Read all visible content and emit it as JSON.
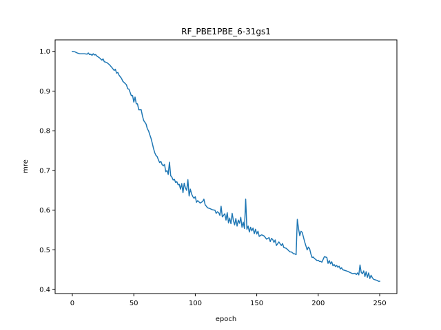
{
  "chart_data": {
    "type": "line",
    "title": "RF_PBE1PBE_6-31gs1",
    "xlabel": "epoch",
    "ylabel": "mre",
    "xlim": [
      -14,
      264
    ],
    "ylim": [
      0.39,
      1.029
    ],
    "xticks": [
      0,
      50,
      100,
      150,
      200,
      250
    ],
    "yticks": [
      0.4,
      0.5,
      0.6,
      0.7,
      0.8,
      0.9,
      1.0
    ],
    "xtick_labels": [
      "0",
      "50",
      "100",
      "150",
      "200",
      "250"
    ],
    "ytick_labels": [
      "0.4",
      "0.5",
      "0.6",
      "0.7",
      "0.8",
      "0.9",
      "1.0"
    ],
    "grid": false,
    "series": [
      {
        "color": "#1f77b4",
        "points": [
          [
            0,
            1.0
          ],
          [
            2,
            0.999
          ],
          [
            4,
            0.996
          ],
          [
            6,
            0.994
          ],
          [
            8,
            0.994
          ],
          [
            10,
            0.994
          ],
          [
            12,
            0.993
          ],
          [
            13,
            0.996
          ],
          [
            14,
            0.992
          ],
          [
            15,
            0.993
          ],
          [
            16,
            0.99
          ],
          [
            17,
            0.994
          ],
          [
            18,
            0.991
          ],
          [
            19,
            0.992
          ],
          [
            20,
            0.988
          ],
          [
            22,
            0.984
          ],
          [
            24,
            0.978
          ],
          [
            25,
            0.981
          ],
          [
            26,
            0.974
          ],
          [
            28,
            0.972
          ],
          [
            30,
            0.967
          ],
          [
            32,
            0.96
          ],
          [
            34,
            0.952
          ],
          [
            35,
            0.955
          ],
          [
            36,
            0.945
          ],
          [
            37,
            0.947
          ],
          [
            38,
            0.94
          ],
          [
            40,
            0.932
          ],
          [
            41,
            0.925
          ],
          [
            42,
            0.922
          ],
          [
            44,
            0.916
          ],
          [
            45,
            0.906
          ],
          [
            46,
            0.905
          ],
          [
            47,
            0.897
          ],
          [
            48,
            0.888
          ],
          [
            49,
            0.889
          ],
          [
            50,
            0.872
          ],
          [
            51,
            0.885
          ],
          [
            52,
            0.868
          ],
          [
            53,
            0.868
          ],
          [
            54,
            0.853
          ],
          [
            56,
            0.853
          ],
          [
            57,
            0.838
          ],
          [
            58,
            0.826
          ],
          [
            60,
            0.817
          ],
          [
            61,
            0.805
          ],
          [
            62,
            0.8
          ],
          [
            63,
            0.79
          ],
          [
            64,
            0.781
          ],
          [
            65,
            0.769
          ],
          [
            66,
            0.756
          ],
          [
            67,
            0.745
          ],
          [
            68,
            0.738
          ],
          [
            69,
            0.735
          ],
          [
            70,
            0.727
          ],
          [
            71,
            0.72
          ],
          [
            72,
            0.723
          ],
          [
            73,
            0.715
          ],
          [
            74,
            0.712
          ],
          [
            75,
            0.715
          ],
          [
            76,
            0.697
          ],
          [
            77,
            0.7
          ],
          [
            78,
            0.69
          ],
          [
            79,
            0.721
          ],
          [
            80,
            0.687
          ],
          [
            81,
            0.683
          ],
          [
            82,
            0.676
          ],
          [
            83,
            0.678
          ],
          [
            84,
            0.67
          ],
          [
            85,
            0.672
          ],
          [
            86,
            0.664
          ],
          [
            87,
            0.665
          ],
          [
            88,
            0.653
          ],
          [
            89,
            0.667
          ],
          [
            90,
            0.644
          ],
          [
            91,
            0.668
          ],
          [
            92,
            0.656
          ],
          [
            93,
            0.65
          ],
          [
            94,
            0.677
          ],
          [
            95,
            0.636
          ],
          [
            96,
            0.653
          ],
          [
            97,
            0.641
          ],
          [
            98,
            0.634
          ],
          [
            99,
            0.63
          ],
          [
            100,
            0.634
          ],
          [
            101,
            0.62
          ],
          [
            102,
            0.624
          ],
          [
            104,
            0.618
          ],
          [
            106,
            0.622
          ],
          [
            107,
            0.628
          ],
          [
            108,
            0.614
          ],
          [
            110,
            0.606
          ],
          [
            112,
            0.604
          ],
          [
            114,
            0.601
          ],
          [
            116,
            0.6
          ],
          [
            117,
            0.592
          ],
          [
            118,
            0.596
          ],
          [
            119,
            0.594
          ],
          [
            120,
            0.587
          ],
          [
            121,
            0.61
          ],
          [
            122,
            0.583
          ],
          [
            124,
            0.591
          ],
          [
            125,
            0.575
          ],
          [
            126,
            0.594
          ],
          [
            127,
            0.568
          ],
          [
            128,
            0.58
          ],
          [
            129,
            0.566
          ],
          [
            130,
            0.592
          ],
          [
            131,
            0.574
          ],
          [
            132,
            0.563
          ],
          [
            133,
            0.579
          ],
          [
            134,
            0.56
          ],
          [
            135,
            0.575
          ],
          [
            136,
            0.567
          ],
          [
            137,
            0.582
          ],
          [
            138,
            0.557
          ],
          [
            139,
            0.57
          ],
          [
            140,
            0.554
          ],
          [
            141,
            0.628
          ],
          [
            142,
            0.552
          ],
          [
            143,
            0.56
          ],
          [
            144,
            0.545
          ],
          [
            145,
            0.557
          ],
          [
            146,
            0.548
          ],
          [
            147,
            0.555
          ],
          [
            148,
            0.541
          ],
          [
            149,
            0.552
          ],
          [
            150,
            0.54
          ],
          [
            151,
            0.547
          ],
          [
            152,
            0.534
          ],
          [
            154,
            0.538
          ],
          [
            156,
            0.535
          ],
          [
            158,
            0.527
          ],
          [
            160,
            0.531
          ],
          [
            161,
            0.521
          ],
          [
            162,
            0.529
          ],
          [
            163,
            0.526
          ],
          [
            164,
            0.519
          ],
          [
            165,
            0.525
          ],
          [
            166,
            0.511
          ],
          [
            168,
            0.52
          ],
          [
            170,
            0.511
          ],
          [
            171,
            0.516
          ],
          [
            172,
            0.506
          ],
          [
            174,
            0.504
          ],
          [
            175,
            0.501
          ],
          [
            176,
            0.498
          ],
          [
            177,
            0.495
          ],
          [
            178,
            0.495
          ],
          [
            179,
            0.493
          ],
          [
            180,
            0.49
          ],
          [
            181,
            0.49
          ],
          [
            182,
            0.488
          ],
          [
            183,
            0.577
          ],
          [
            184,
            0.553
          ],
          [
            185,
            0.536
          ],
          [
            186,
            0.547
          ],
          [
            187,
            0.544
          ],
          [
            188,
            0.532
          ],
          [
            189,
            0.52
          ],
          [
            190,
            0.51
          ],
          [
            191,
            0.5
          ],
          [
            192,
            0.507
          ],
          [
            193,
            0.503
          ],
          [
            194,
            0.49
          ],
          [
            195,
            0.481
          ],
          [
            196,
            0.482
          ],
          [
            197,
            0.478
          ],
          [
            198,
            0.476
          ],
          [
            199,
            0.473
          ],
          [
            200,
            0.474
          ],
          [
            201,
            0.471
          ],
          [
            202,
            0.471
          ],
          [
            203,
            0.469
          ],
          [
            204,
            0.476
          ],
          [
            205,
            0.483
          ],
          [
            206,
            0.482
          ],
          [
            207,
            0.481
          ],
          [
            208,
            0.466
          ],
          [
            209,
            0.473
          ],
          [
            210,
            0.465
          ],
          [
            211,
            0.47
          ],
          [
            212,
            0.46
          ],
          [
            213,
            0.463
          ],
          [
            214,
            0.458
          ],
          [
            215,
            0.461
          ],
          [
            216,
            0.456
          ],
          [
            217,
            0.459
          ],
          [
            218,
            0.452
          ],
          [
            219,
            0.455
          ],
          [
            220,
            0.45
          ],
          [
            222,
            0.448
          ],
          [
            224,
            0.446
          ],
          [
            226,
            0.443
          ],
          [
            228,
            0.44
          ],
          [
            230,
            0.441
          ],
          [
            231,
            0.438
          ],
          [
            232,
            0.442
          ],
          [
            233,
            0.437
          ],
          [
            234,
            0.462
          ],
          [
            235,
            0.443
          ],
          [
            236,
            0.44
          ],
          [
            237,
            0.447
          ],
          [
            238,
            0.433
          ],
          [
            239,
            0.445
          ],
          [
            240,
            0.431
          ],
          [
            241,
            0.442
          ],
          [
            242,
            0.428
          ],
          [
            243,
            0.436
          ],
          [
            244,
            0.43
          ],
          [
            245,
            0.426
          ],
          [
            246,
            0.425
          ],
          [
            247,
            0.424
          ],
          [
            248,
            0.423
          ],
          [
            249,
            0.421
          ],
          [
            250,
            0.421
          ]
        ]
      }
    ]
  }
}
